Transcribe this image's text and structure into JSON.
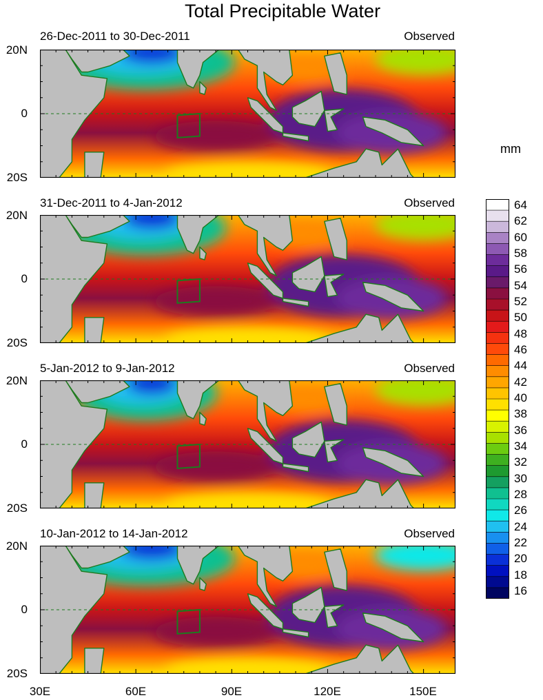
{
  "title": "Total Precipitable Water",
  "unit_label": "mm",
  "panels": [
    {
      "date_range": "26-Dec-2011 to 30-Dec-2011",
      "type_label": "Observed"
    },
    {
      "date_range": "31-Dec-2011 to 4-Jan-2012",
      "type_label": "Observed"
    },
    {
      "date_range": "5-Jan-2012 to 9-Jan-2012",
      "type_label": "Observed"
    },
    {
      "date_range": "10-Jan-2012 to 14-Jan-2012",
      "type_label": "Observed"
    }
  ],
  "lat_labels": [
    "20N",
    "0",
    "20S"
  ],
  "lon_labels": [
    "30E",
    "60E",
    "90E",
    "120E",
    "150E"
  ],
  "colorbar": {
    "labels": [
      "64",
      "62",
      "60",
      "58",
      "56",
      "54",
      "52",
      "50",
      "48",
      "46",
      "44",
      "42",
      "40",
      "38",
      "36",
      "34",
      "32",
      "30",
      "28",
      "26",
      "24",
      "22",
      "20",
      "18",
      "16"
    ],
    "colors": [
      "#ffffff",
      "#e8e0ee",
      "#cbb8db",
      "#a983c5",
      "#8d59b3",
      "#6d2c9b",
      "#5a1a88",
      "#6a1a6a",
      "#8a1040",
      "#a8102a",
      "#c81418",
      "#e31a1a",
      "#f5320f",
      "#ff4a0a",
      "#ff6a00",
      "#ff8c00",
      "#ffa600",
      "#ffc400",
      "#ffe000",
      "#ffff00",
      "#d8f200",
      "#a8e000",
      "#6ccc10",
      "#3eb020",
      "#1e9a30",
      "#14a060",
      "#10c090",
      "#10d8c0",
      "#10e8e8",
      "#20c0f0",
      "#1890f0",
      "#1060e8",
      "#0a30d8",
      "#0010c0",
      "#000a90",
      "#000560"
    ]
  }
}
